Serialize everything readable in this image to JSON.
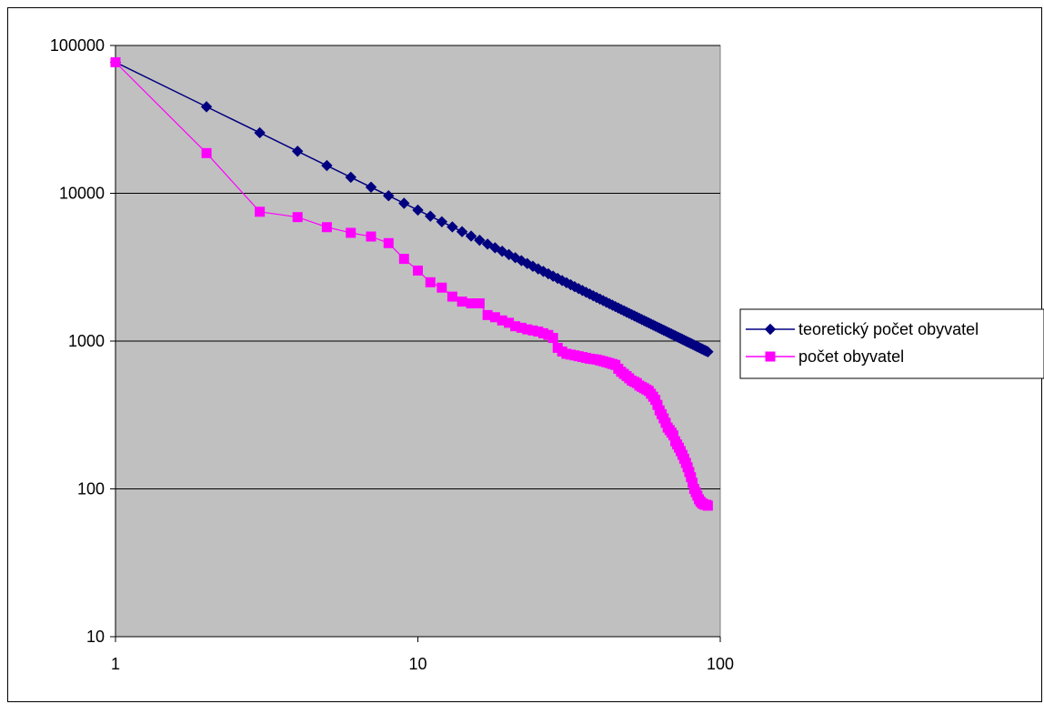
{
  "chart_data": {
    "type": "line",
    "title": "",
    "xlabel": "",
    "ylabel": "",
    "x_scale": "log",
    "y_scale": "log",
    "xlim": [
      1,
      100
    ],
    "ylim": [
      10,
      100000
    ],
    "grid": "horizontal major gridlines",
    "legend_position": "right",
    "plot_background": "#c0c0c0",
    "x_tick_labels": [
      "1",
      "10",
      "100"
    ],
    "y_tick_labels": [
      "100000",
      "10000",
      "1000",
      "100",
      "10"
    ],
    "x_ticks": [
      1,
      10,
      100
    ],
    "y_ticks": [
      100000,
      10000,
      1000,
      100,
      10
    ],
    "series": [
      {
        "name": "teoretický počet obyvatel",
        "color": "#000080",
        "marker": "diamond",
        "x": [
          1,
          2,
          3,
          4,
          5,
          6,
          7,
          8,
          9,
          10,
          11,
          12,
          13,
          14,
          15,
          16,
          17,
          18,
          19,
          20,
          21,
          22,
          23,
          24,
          25,
          26,
          27,
          28,
          29,
          30,
          31,
          32,
          33,
          34,
          35,
          36,
          37,
          38,
          39,
          40,
          41,
          42,
          43,
          44,
          45,
          46,
          47,
          48,
          49,
          50,
          51,
          52,
          53,
          54,
          55,
          56,
          57,
          58,
          59,
          60,
          61,
          62,
          63,
          64,
          65,
          66,
          67,
          68,
          69,
          70,
          71,
          72,
          73,
          74,
          75,
          76,
          77,
          78,
          79,
          80,
          81,
          82,
          83,
          84,
          85,
          86,
          87,
          88,
          89,
          90,
          91
        ],
        "y": [
          77000,
          38500,
          25667,
          19250,
          15400,
          12833,
          11000,
          9625,
          8556,
          7700,
          7000,
          6417,
          5923,
          5500,
          5133,
          4813,
          4529,
          4278,
          4053,
          3850,
          3667,
          3500,
          3348,
          3208,
          3080,
          2962,
          2852,
          2750,
          2655,
          2567,
          2484,
          2406,
          2333,
          2265,
          2200,
          2139,
          2081,
          2026,
          1974,
          1925,
          1878,
          1833,
          1791,
          1750,
          1711,
          1674,
          1638,
          1604,
          1571,
          1540,
          1510,
          1481,
          1453,
          1426,
          1400,
          1375,
          1351,
          1328,
          1305,
          1283,
          1262,
          1242,
          1222,
          1203,
          1185,
          1167,
          1149,
          1132,
          1116,
          1100,
          1085,
          1069,
          1055,
          1041,
          1027,
          1013,
          1000,
          987,
          975,
          963,
          951,
          939,
          928,
          917,
          906,
          895,
          885,
          875,
          865,
          856,
          846
        ]
      },
      {
        "name": "počet obyvatel",
        "color": "#ff00ff",
        "marker": "square",
        "x": [
          1,
          2,
          3,
          4,
          5,
          6,
          7,
          8,
          9,
          10,
          11,
          12,
          13,
          14,
          15,
          16,
          17,
          18,
          19,
          20,
          21,
          22,
          23,
          24,
          25,
          26,
          27,
          28,
          29,
          30,
          31,
          32,
          33,
          34,
          35,
          36,
          37,
          38,
          39,
          40,
          41,
          42,
          43,
          44,
          45,
          46,
          47,
          48,
          49,
          50,
          51,
          52,
          53,
          54,
          55,
          56,
          57,
          58,
          59,
          60,
          61,
          62,
          63,
          64,
          65,
          66,
          67,
          68,
          69,
          70,
          71,
          72,
          73,
          74,
          75,
          76,
          77,
          78,
          79,
          80,
          81,
          82,
          83,
          84,
          85,
          86,
          87,
          88,
          89,
          90,
          91
        ],
        "y": [
          77000,
          18700,
          7500,
          6900,
          5900,
          5400,
          5100,
          4600,
          3600,
          3000,
          2500,
          2300,
          2000,
          1850,
          1800,
          1800,
          1500,
          1450,
          1380,
          1330,
          1260,
          1230,
          1200,
          1180,
          1160,
          1130,
          1100,
          1050,
          900,
          850,
          820,
          810,
          800,
          790,
          780,
          770,
          760,
          755,
          750,
          740,
          730,
          720,
          710,
          700,
          690,
          650,
          620,
          600,
          580,
          560,
          540,
          530,
          520,
          500,
          490,
          480,
          470,
          460,
          440,
          420,
          400,
          370,
          340,
          320,
          300,
          280,
          260,
          250,
          240,
          230,
          210,
          200,
          190,
          180,
          170,
          160,
          150,
          140,
          130,
          120,
          110,
          100,
          95,
          90,
          85,
          82,
          80,
          79,
          78,
          78,
          77
        ],
        "x_marker_samples": "values estimated from chart"
      }
    ]
  }
}
